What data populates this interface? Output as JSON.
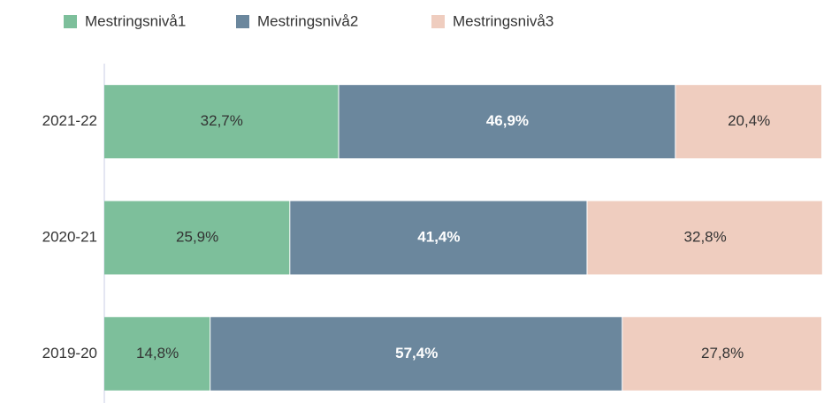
{
  "chart_data": {
    "type": "stacked_bar_horizontal",
    "categories": [
      "2021-22",
      "2020-21",
      "2019-20"
    ],
    "series": [
      {
        "name": "Mestringsnivå1",
        "color": "#7dbf9b",
        "label_color": "#333333",
        "values": [
          32.7,
          25.9,
          14.8
        ],
        "value_labels": [
          "32,7%",
          "25,9%",
          "14,8%"
        ]
      },
      {
        "name": "Mestringsnivå2",
        "color": "#6b879d",
        "label_color": "#ffffff",
        "values": [
          46.9,
          41.4,
          57.4
        ],
        "value_labels": [
          "46,9%",
          "41,4%",
          "57,4%"
        ]
      },
      {
        "name": "Mestringsnivå3",
        "color": "#efcdbf",
        "label_color": "#333333",
        "values": [
          20.4,
          32.8,
          27.8
        ],
        "value_labels": [
          "20,4%",
          "32,8%",
          "27,8%"
        ]
      }
    ],
    "xlim": [
      0,
      100
    ]
  }
}
